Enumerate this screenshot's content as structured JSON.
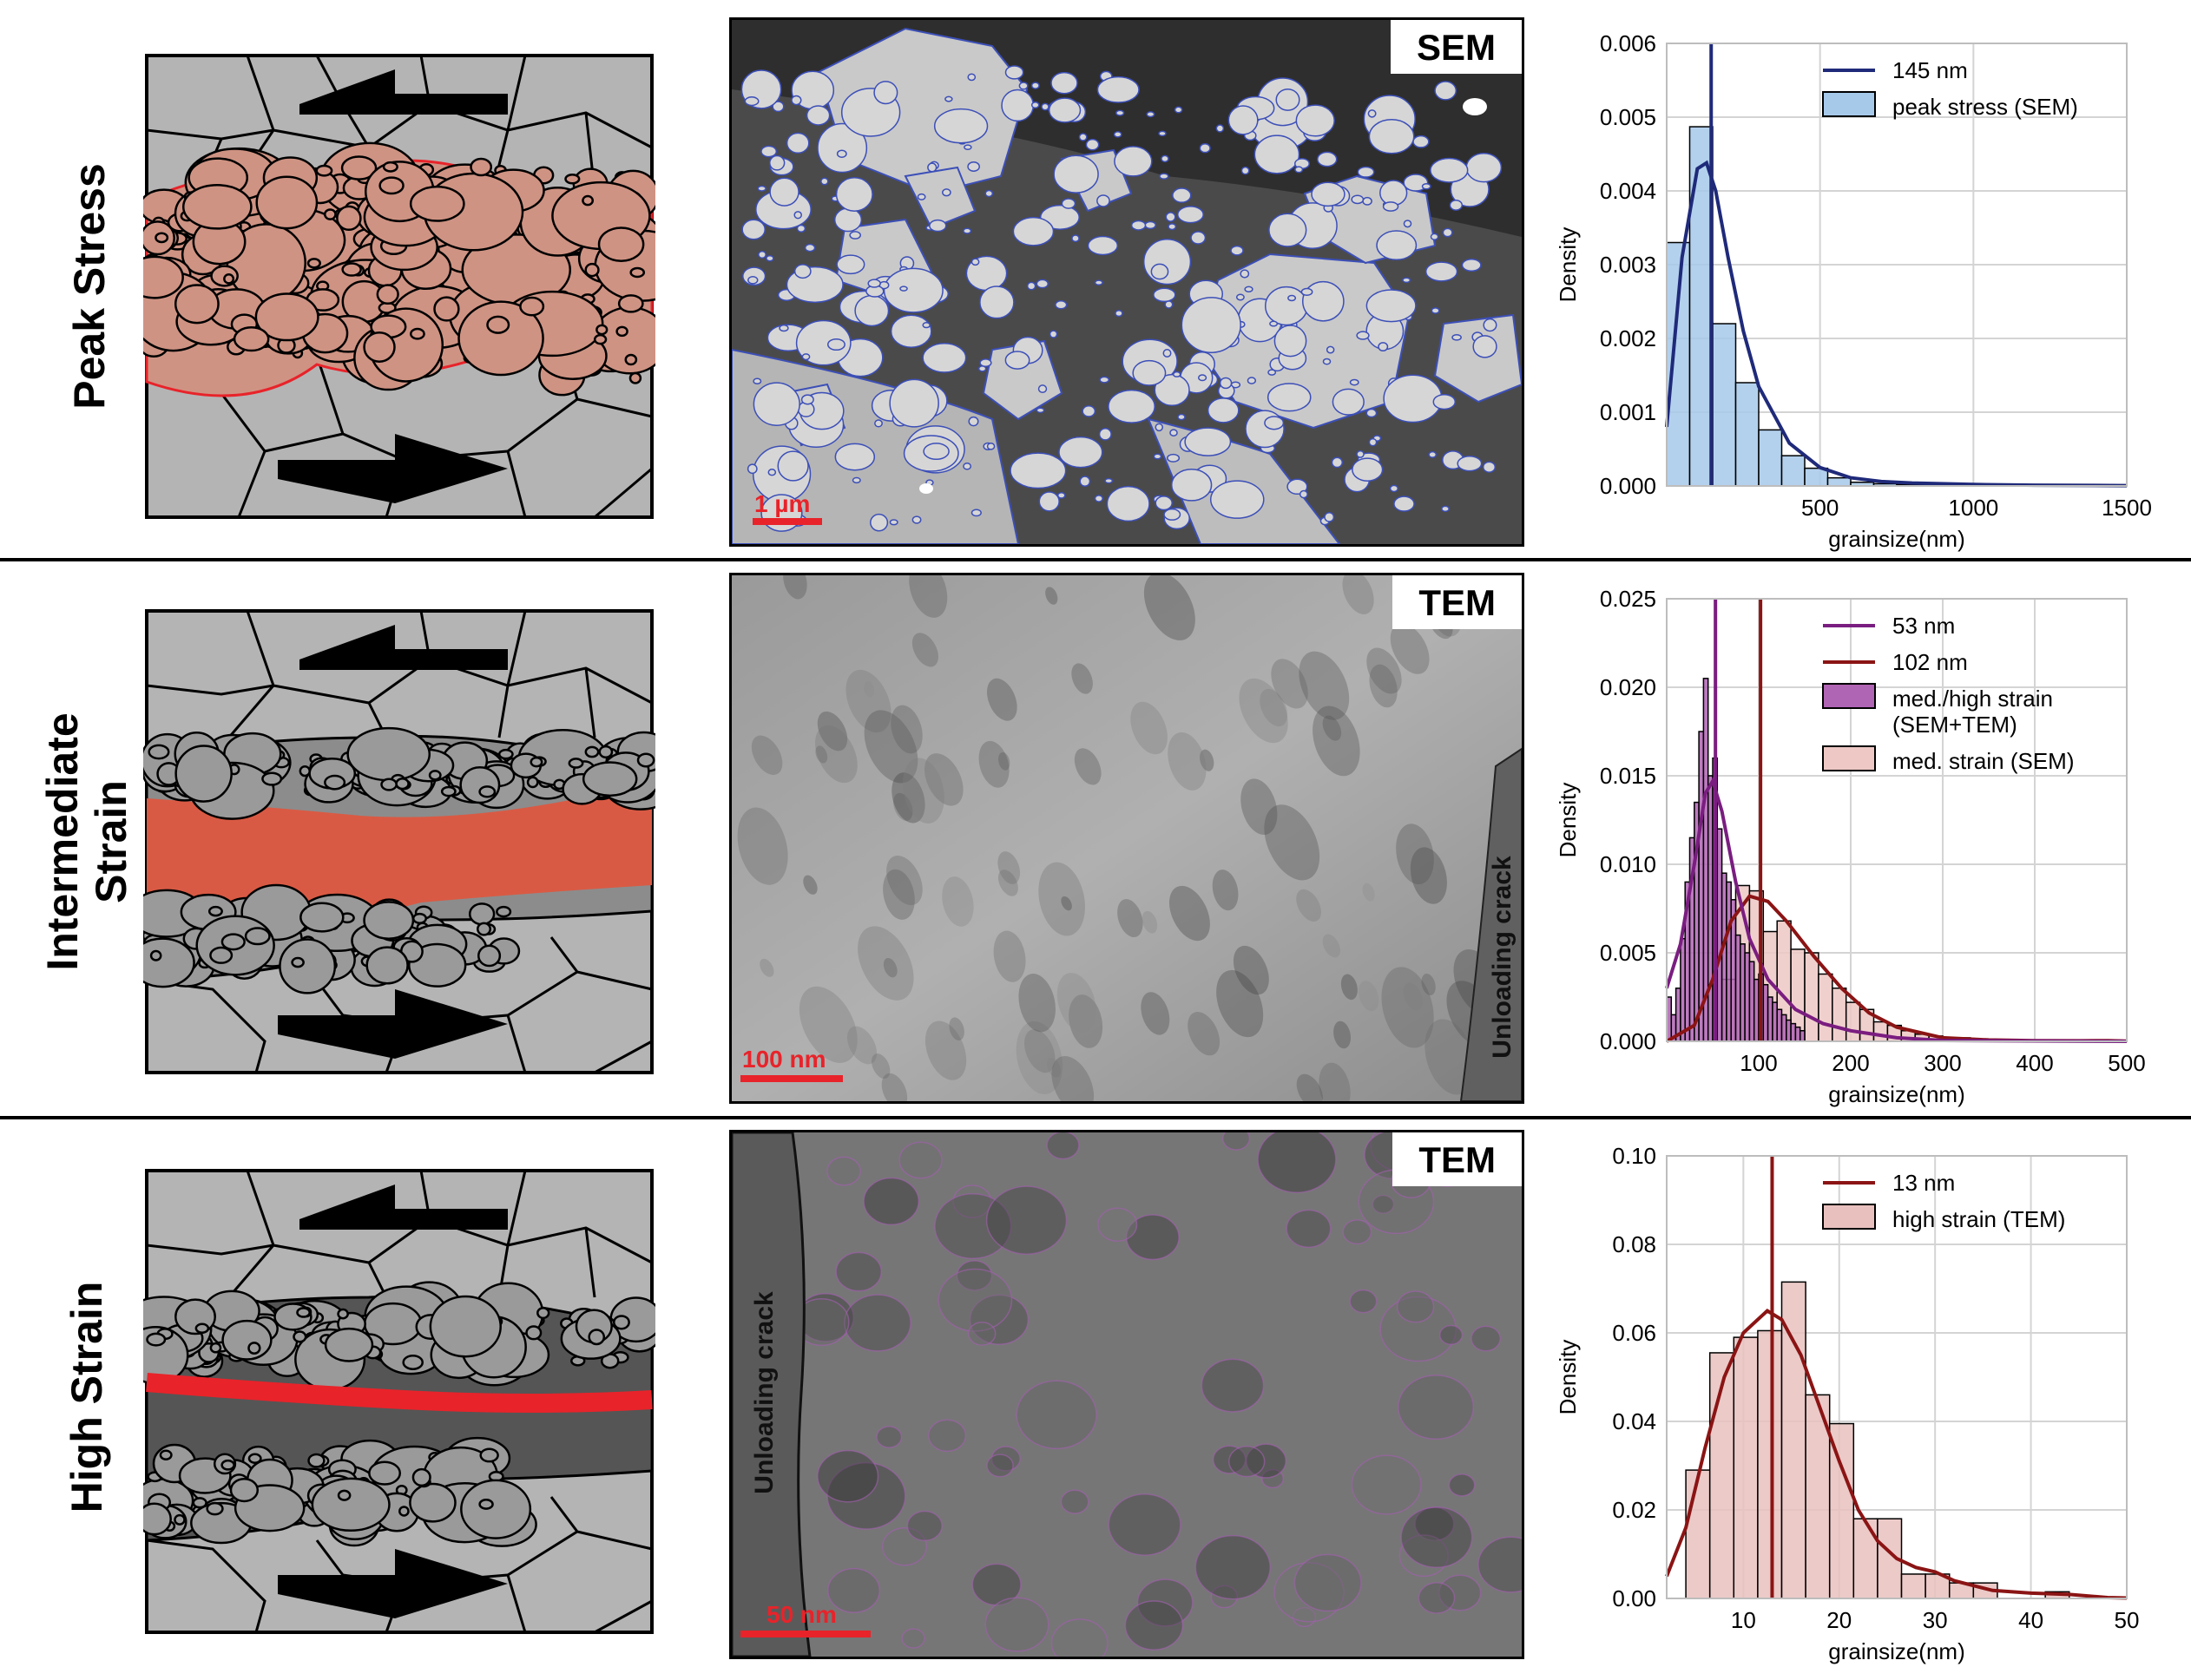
{
  "rows": [
    {
      "label": "Peak Stress",
      "label_lines": [
        "Peak Stress"
      ],
      "method": "SEM",
      "scale_bar": "1 µm",
      "crack_label": ""
    },
    {
      "label": "Intermediate Strain",
      "label_lines": [
        "Intermediate",
        "Strain"
      ],
      "method": "TEM",
      "scale_bar": "100 nm",
      "crack_label": "Unloading crack"
    },
    {
      "label": "High Strain",
      "label_lines": [
        "High Strain"
      ],
      "method": "TEM",
      "scale_bar": "50 nm",
      "crack_label": "Unloading crack"
    }
  ],
  "row_labels": {
    "r0": "Peak Stress",
    "r1a": "Intermediate",
    "r1b": "Strain",
    "r2": "High Strain"
  },
  "micro_tags": {
    "r0": "SEM",
    "r1": "TEM",
    "r2": "TEM"
  },
  "scale_bars": {
    "r0": "1 µm",
    "r1": "100 nm",
    "r2": "50 nm"
  },
  "crack_labels": {
    "r1": "Unloading crack",
    "r2": "Unloading crack"
  },
  "colors": {
    "sem_hist": "#a6c9ea",
    "sem_line": "#1f2a7a",
    "mixed_hist": "#b064b4",
    "mixed_line": "#7a1d80",
    "sem_med_hist": "#edc8c4",
    "tem_hist": "#e8c1be",
    "red_line": "#8b1414",
    "schematic_grey": "#b4b4b4",
    "peak_zone": "#cf9383",
    "int_zone": "#d95a44",
    "high_zone": "#e8232a",
    "dark_matrix": "#555555"
  },
  "chart_data": [
    {
      "type": "histogram",
      "xlabel": "grainsize(nm)",
      "ylabel": "Density",
      "xlim": [
        0,
        1500
      ],
      "ylim": [
        0,
        0.006
      ],
      "xticks": [
        500,
        1000,
        1500
      ],
      "xtick_labels": [
        "500",
        "1000",
        "1500"
      ],
      "yticks": [
        0,
        0.001,
        0.002,
        0.003,
        0.004,
        0.005,
        0.006
      ],
      "ytick_labels": [
        "0.000",
        "0.001",
        "0.002",
        "0.003",
        "0.004",
        "0.005",
        "0.006"
      ],
      "grid": true,
      "legend": "top-right",
      "vlines": [
        {
          "x": 145,
          "label": "145 nm",
          "color": "#1f2a7a"
        }
      ],
      "series": [
        {
          "name": "peak stress (SEM)",
          "color": "#a6c9ea",
          "bin_edges": [
            0,
            75,
            150,
            225,
            300,
            375,
            450,
            525,
            600,
            675,
            750,
            825,
            900
          ],
          "values": [
            0.0033,
            0.00487,
            0.0022,
            0.0014,
            0.00076,
            0.00041,
            0.00024,
            0.00011,
            5e-05,
            3e-05,
            2e-05,
            1e-05
          ],
          "kde": [
            [
              0,
              0.0008
            ],
            [
              50,
              0.0031
            ],
            [
              100,
              0.0043
            ],
            [
              130,
              0.00438
            ],
            [
              160,
              0.004
            ],
            [
              200,
              0.0031
            ],
            [
              250,
              0.0021
            ],
            [
              300,
              0.00135
            ],
            [
              400,
              0.00058
            ],
            [
              500,
              0.00025
            ],
            [
              600,
              0.00011
            ],
            [
              700,
              6e-05
            ],
            [
              800,
              4e-05
            ],
            [
              1000,
              2e-05
            ],
            [
              1200,
              1e-05
            ],
            [
              1500,
              5e-06
            ]
          ]
        }
      ]
    },
    {
      "type": "histogram",
      "xlabel": "grainsize(nm)",
      "ylabel": "Density",
      "xlim": [
        0,
        500
      ],
      "ylim": [
        0,
        0.025
      ],
      "xticks": [
        100,
        200,
        300,
        400,
        500
      ],
      "xtick_labels": [
        "100",
        "200",
        "300",
        "400",
        "500"
      ],
      "yticks": [
        0,
        0.005,
        0.01,
        0.015,
        0.02,
        0.025
      ],
      "ytick_labels": [
        "0.000",
        "0.005",
        "0.010",
        "0.015",
        "0.020",
        "0.025"
      ],
      "grid": true,
      "legend": "top-right",
      "vlines": [
        {
          "x": 53,
          "label": "53 nm",
          "color": "#7a1d80"
        },
        {
          "x": 102,
          "label": "102 nm",
          "color": "#8b1414"
        }
      ],
      "series": [
        {
          "name": "med. strain (SEM)",
          "color": "#edc8c4",
          "bin_edges": [
            60,
            75,
            90,
            105,
            120,
            135,
            150,
            165,
            180,
            195,
            210,
            225,
            240,
            255,
            270,
            285,
            300,
            315,
            330,
            345,
            360,
            375,
            390,
            405,
            420,
            435,
            450,
            465,
            480
          ],
          "values": [
            0.0035,
            0.0088,
            0.0085,
            0.0062,
            0.0068,
            0.0052,
            0.005,
            0.0038,
            0.003,
            0.0022,
            0.0018,
            0.0011,
            0.0009,
            0.0006,
            0.0004,
            0.0003,
            0.0002,
            0.0002,
            0.0001,
            0.0001,
            0.0001,
            5e-05,
            5e-05,
            5e-05,
            0.0,
            0.0,
            5e-05,
            3e-05
          ],
          "kde": [
            [
              0,
              0.0
            ],
            [
              30,
              0.0009
            ],
            [
              50,
              0.0035
            ],
            [
              70,
              0.0068
            ],
            [
              90,
              0.0082
            ],
            [
              110,
              0.0079
            ],
            [
              130,
              0.0068
            ],
            [
              160,
              0.0048
            ],
            [
              190,
              0.003
            ],
            [
              220,
              0.0016
            ],
            [
              250,
              0.0008
            ],
            [
              300,
              0.0002
            ],
            [
              350,
              8e-05
            ],
            [
              400,
              4e-05
            ],
            [
              450,
              3e-05
            ],
            [
              480,
              4e-05
            ],
            [
              500,
              1e-05
            ]
          ]
        },
        {
          "name": "med./high strain\n(SEM+TEM)",
          "color": "#b064b4",
          "bin_edges": [
            0,
            5,
            10,
            15,
            20,
            25,
            30,
            35,
            40,
            45,
            50,
            55,
            60,
            65,
            70,
            75,
            80,
            85,
            90,
            95,
            100,
            105,
            110,
            115,
            120,
            125,
            130,
            135,
            140,
            145,
            150
          ],
          "values": [
            0.0025,
            0.0015,
            0.003,
            0.0058,
            0.009,
            0.0115,
            0.0135,
            0.0175,
            0.0205,
            0.015,
            0.016,
            0.012,
            0.0095,
            0.009,
            0.008,
            0.006,
            0.0055,
            0.005,
            0.0045,
            0.0035,
            0.0038,
            0.0032,
            0.0025,
            0.0022,
            0.0018,
            0.0015,
            0.0012,
            0.001,
            0.0008,
            0.0006
          ],
          "kde": [
            [
              0,
              0.003
            ],
            [
              15,
              0.0055
            ],
            [
              30,
              0.01
            ],
            [
              42,
              0.014
            ],
            [
              50,
              0.0147
            ],
            [
              60,
              0.013
            ],
            [
              75,
              0.009
            ],
            [
              90,
              0.0058
            ],
            [
              110,
              0.0035
            ],
            [
              140,
              0.0018
            ],
            [
              170,
              0.001
            ],
            [
              200,
              0.0006
            ],
            [
              250,
              0.0002
            ],
            [
              300,
              5e-05
            ],
            [
              500,
              0.0
            ]
          ]
        }
      ]
    },
    {
      "type": "histogram",
      "xlabel": "grainsize(nm)",
      "ylabel": "Density",
      "xlim": [
        2,
        50
      ],
      "ylim": [
        0,
        0.1
      ],
      "xticks": [
        10,
        20,
        30,
        40,
        50
      ],
      "xtick_labels": [
        "10",
        "20",
        "30",
        "40",
        "50"
      ],
      "yticks": [
        0,
        0.02,
        0.04,
        0.06,
        0.08,
        0.1
      ],
      "ytick_labels": [
        "0.00",
        "0.02",
        "0.04",
        "0.06",
        "0.08",
        "0.10"
      ],
      "grid": true,
      "legend": "top-right",
      "vlines": [
        {
          "x": 13,
          "label": "13 nm",
          "color": "#8b1414"
        }
      ],
      "series": [
        {
          "name": "high strain (TEM)",
          "color": "#e8c1be",
          "bin_edges": [
            4,
            6.5,
            9,
            11.5,
            14,
            16.5,
            19,
            21.5,
            24,
            26.5,
            29,
            31.5,
            34,
            36.5,
            39,
            41.5,
            44,
            46.5
          ],
          "values": [
            0.029,
            0.0555,
            0.059,
            0.0605,
            0.0715,
            0.046,
            0.0395,
            0.018,
            0.018,
            0.0055,
            0.0055,
            0.0035,
            0.0035,
            0.0,
            0.0,
            0.0015,
            0.0
          ],
          "kde": [
            [
              2,
              0.005
            ],
            [
              4,
              0.016
            ],
            [
              6,
              0.034
            ],
            [
              8,
              0.05
            ],
            [
              10,
              0.06
            ],
            [
              12.5,
              0.065
            ],
            [
              14,
              0.063
            ],
            [
              16,
              0.055
            ],
            [
              18,
              0.043
            ],
            [
              20,
              0.031
            ],
            [
              22,
              0.02
            ],
            [
              24,
              0.013
            ],
            [
              26,
              0.009
            ],
            [
              28,
              0.007
            ],
            [
              30,
              0.006
            ],
            [
              32,
              0.004
            ],
            [
              36,
              0.0018
            ],
            [
              40,
              0.0012
            ],
            [
              44,
              0.0009
            ],
            [
              48,
              0.0002
            ],
            [
              50,
              0.0001
            ]
          ]
        }
      ]
    }
  ]
}
